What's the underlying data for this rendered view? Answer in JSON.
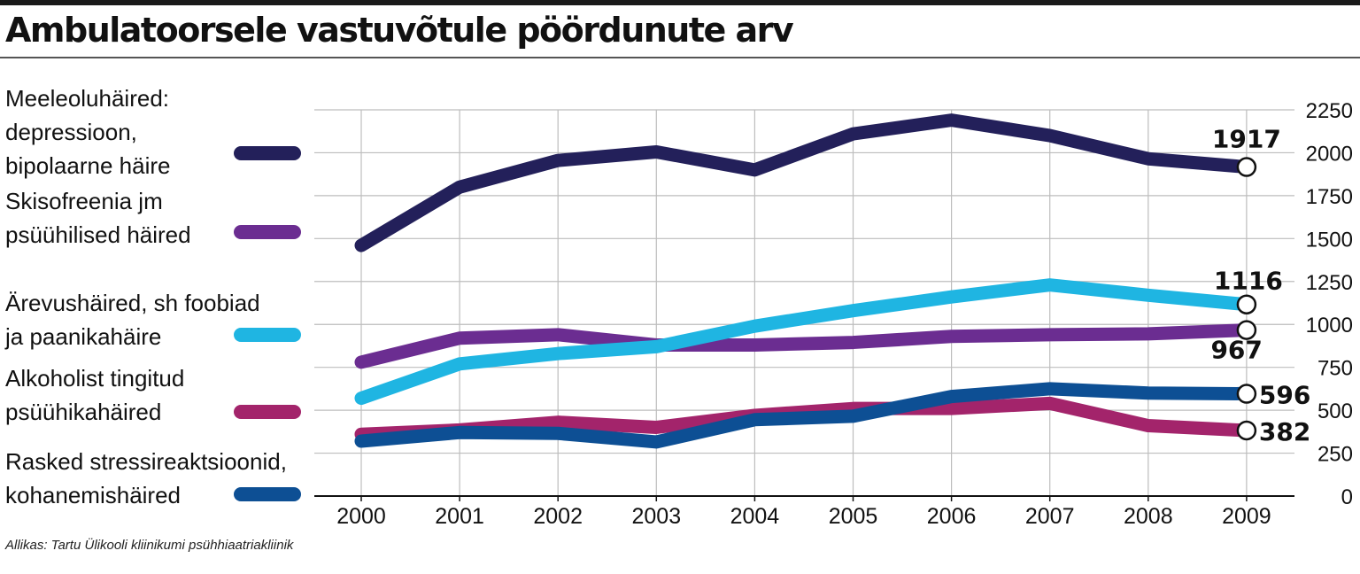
{
  "title": "Ambulatoorsele vastuvõtule pöördunute arv",
  "source": "Allikas: Tartu Ülikooli kliinikumi psühhiaatriakliinik",
  "colors": {
    "frame": "#1a1a1a",
    "grid": "#bdbdbd",
    "axis": "#111111"
  },
  "legend": [
    {
      "lines": [
        "Meeleoluhäired:",
        "depressioon,",
        "bipolaarne häire"
      ]
    },
    {
      "lines": [
        "Skisofreenia jm",
        "psüühilised häired"
      ]
    },
    {
      "lines": [
        "Ärevushäired, sh foobiad",
        "ja paanikahäire"
      ]
    },
    {
      "lines": [
        "Alkoholist tingitud",
        "psüühikahäired"
      ]
    },
    {
      "lines": [
        "Rasked stressireaktsioonid,",
        "kohanemishäired"
      ]
    }
  ],
  "chart_data": {
    "type": "line",
    "title": "Ambulatoorsele vastuvõtule pöördunute arv",
    "xlabel": "",
    "ylabel": "",
    "categories": [
      "2000",
      "2001",
      "2002",
      "2003",
      "2004",
      "2005",
      "2006",
      "2007",
      "2008",
      "2009"
    ],
    "ylim": [
      0,
      2250
    ],
    "yticks": [
      0,
      250,
      500,
      750,
      1000,
      1250,
      1500,
      1750,
      2000,
      2250
    ],
    "grid": true,
    "legend_placement": "left",
    "series": [
      {
        "name": "Meeleoluhäired: depressioon, bipolaarne häire",
        "color": "#23205a",
        "values": [
          1460,
          1800,
          1955,
          2005,
          1900,
          2110,
          2190,
          2100,
          1965,
          1917
        ],
        "end_label": "1917"
      },
      {
        "name": "Skisofreenia jm psüühilised häired",
        "color": "#6b2d91",
        "values": [
          780,
          920,
          940,
          880,
          880,
          895,
          930,
          940,
          945,
          967
        ],
        "end_label": "967"
      },
      {
        "name": "Ärevushäired, sh foobiad ja paanikahäire",
        "color": "#1fb5e2",
        "values": [
          570,
          770,
          830,
          870,
          990,
          1080,
          1160,
          1230,
          1170,
          1116
        ],
        "end_label": "1116"
      },
      {
        "name": "Alkoholist tingitud psüühikahäired",
        "color": "#a3246b",
        "values": [
          360,
          385,
          430,
          400,
          470,
          510,
          510,
          540,
          410,
          382
        ],
        "end_label": "382"
      },
      {
        "name": "Rasked stressireaktsioonid, kohanemishäired",
        "color": "#0d4f94",
        "values": [
          320,
          370,
          365,
          315,
          445,
          465,
          580,
          625,
          600,
          596
        ],
        "end_label": "596"
      }
    ]
  }
}
